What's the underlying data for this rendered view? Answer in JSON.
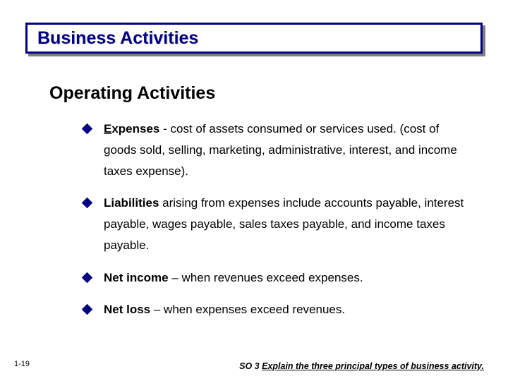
{
  "title_bar": {
    "text": "Business Activities",
    "border_color": "#000080",
    "text_color": "#000080",
    "bg_color": "#ffffff",
    "shadow_color": "#808080"
  },
  "subtitle": "Operating Activities",
  "bullets": [
    {
      "bold": "Expenses",
      "bold_underline_first": true,
      "rest": " - cost of assets consumed or services used. (cost of goods sold, selling, marketing, administrative, interest, and income taxes expense)."
    },
    {
      "bold": "Liabilities",
      "bold_underline_first": false,
      "rest": " arising from expenses include accounts payable, interest payable, wages payable, sales taxes payable, and income taxes payable."
    },
    {
      "bold": "Net income",
      "bold_underline_first": false,
      "rest": " – when revenues exceed expenses."
    },
    {
      "bold": "Net loss",
      "bold_underline_first": false,
      "rest": " – when expenses exceed revenues."
    }
  ],
  "page_number": "1-19",
  "footer": {
    "prefix": "SO 3  ",
    "underlined": "Explain the three principal types of business activity."
  },
  "bullet_color": "#000080"
}
